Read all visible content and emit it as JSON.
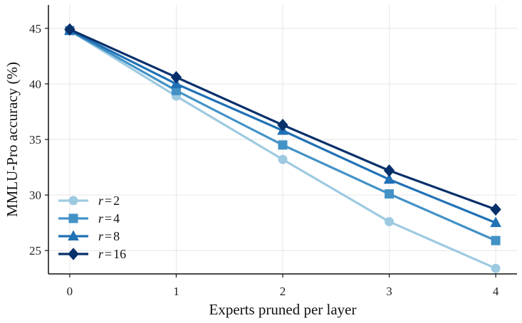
{
  "chart_data": {
    "type": "line",
    "xlabel": "Experts pruned per layer",
    "ylabel": "MMLU-Pro accuracy (%)",
    "x": [
      0,
      1,
      2,
      3,
      4
    ],
    "xlim": [
      -0.2,
      4.2
    ],
    "ylim": [
      22.9,
      47.1
    ],
    "xticks": [
      "0",
      "1",
      "2",
      "3",
      "4"
    ],
    "yticks": [
      "25",
      "30",
      "35",
      "40",
      "45"
    ],
    "grid": true,
    "legend_position": "bottom-left",
    "series": [
      {
        "name_prefix": "r",
        "name_eq": "=",
        "name_value": "2",
        "color": "#9ecae1",
        "marker": "circle",
        "values": [
          44.8,
          38.9,
          33.2,
          27.6,
          23.4
        ]
      },
      {
        "name_prefix": "r",
        "name_eq": "=",
        "name_value": "4",
        "color": "#4292c6",
        "marker": "square",
        "values": [
          44.8,
          39.4,
          34.5,
          30.1,
          25.9
        ]
      },
      {
        "name_prefix": "r",
        "name_eq": "=",
        "name_value": "8",
        "color": "#2171b5",
        "marker": "triangle",
        "values": [
          44.8,
          40.0,
          35.8,
          31.4,
          27.5
        ]
      },
      {
        "name_prefix": "r",
        "name_eq": "=",
        "name_value": "16",
        "color": "#08306b",
        "marker": "diamond",
        "values": [
          44.9,
          40.6,
          36.3,
          32.2,
          28.7
        ]
      }
    ]
  }
}
